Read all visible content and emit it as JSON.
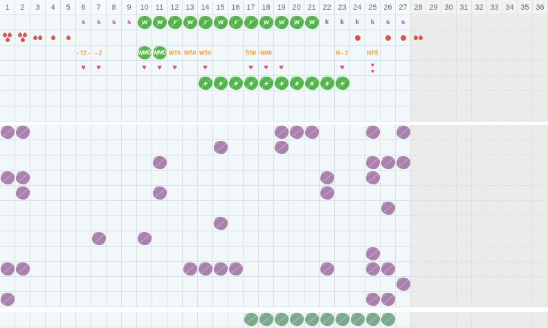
{
  "colors": {
    "bright_green": "#55b34c",
    "sea_green": "#7ca98c",
    "purple": "#a981ac",
    "red": "#d95550",
    "heart_pink": "#df4f77",
    "letter_purple": "#ad56a0",
    "orange": "#f2a12b",
    "header_text": "#5d6b75",
    "grid_line": "#cfe3ee",
    "bg_light": "#f2f7f9",
    "bg_gray": "#ebebe9",
    "bg_header": "#f6f9fa"
  },
  "grid": {
    "columns": 36,
    "gray_from_column": 28,
    "header_numbers": [
      "1",
      "2",
      "3",
      "4",
      "5",
      "6",
      "7",
      "8",
      "9",
      "10",
      "11",
      "12",
      "13",
      "14",
      "15",
      "16",
      "17",
      "18",
      "19",
      "20",
      "21",
      "22",
      "23",
      "24",
      "25",
      "26",
      "27",
      "28",
      "29",
      "30",
      "31",
      "32",
      "33",
      "34",
      "35",
      "36"
    ]
  },
  "upper_rows": [
    {
      "name": "status-row",
      "cells": [
        {
          "col": 6,
          "kind": "letter",
          "text": "s"
        },
        {
          "col": 7,
          "kind": "letter",
          "text": "s"
        },
        {
          "col": 8,
          "kind": "letter",
          "text": "s"
        },
        {
          "col": 9,
          "kind": "letter",
          "text": "s"
        },
        {
          "col": 10,
          "kind": "green_letter",
          "text": "w"
        },
        {
          "col": 11,
          "kind": "green_letter",
          "text": "w"
        },
        {
          "col": 12,
          "kind": "green_letter",
          "text": "r"
        },
        {
          "col": 13,
          "kind": "green_letter",
          "text": "w"
        },
        {
          "col": 14,
          "kind": "green_letter",
          "text": "r"
        },
        {
          "col": 15,
          "kind": "green_letter",
          "text": "w"
        },
        {
          "col": 16,
          "kind": "green_letter",
          "text": "r"
        },
        {
          "col": 17,
          "kind": "green_letter",
          "text": "r"
        },
        {
          "col": 18,
          "kind": "green_letter",
          "text": "w"
        },
        {
          "col": 19,
          "kind": "green_letter",
          "text": "w"
        },
        {
          "col": 20,
          "kind": "green_letter",
          "text": "w"
        },
        {
          "col": 21,
          "kind": "green_letter",
          "text": "w"
        },
        {
          "col": 22,
          "kind": "letter",
          "text": "k"
        },
        {
          "col": 23,
          "kind": "letter",
          "text": "k"
        },
        {
          "col": 24,
          "kind": "letter",
          "text": "k"
        },
        {
          "col": 25,
          "kind": "letter",
          "text": "k"
        },
        {
          "col": 26,
          "kind": "letter",
          "text": "s"
        },
        {
          "col": 27,
          "kind": "letter",
          "text": "s"
        }
      ]
    },
    {
      "name": "drops-row",
      "cells": [
        {
          "col": 1,
          "kind": "drops",
          "count": 3
        },
        {
          "col": 2,
          "kind": "drops",
          "count": 3
        },
        {
          "col": 3,
          "kind": "drops",
          "count": 2
        },
        {
          "col": 4,
          "kind": "drops",
          "count": 1
        },
        {
          "col": 5,
          "kind": "drops",
          "count": 1
        },
        {
          "col": 24,
          "kind": "dot"
        },
        {
          "col": 26,
          "kind": "dot"
        },
        {
          "col": 27,
          "kind": "dot"
        },
        {
          "col": 28,
          "kind": "drops",
          "count": 2
        }
      ]
    },
    {
      "name": "labels-row",
      "cells": [
        {
          "col": 6,
          "kind": "orange_label",
          "text": "- TZ -"
        },
        {
          "col": 7,
          "kind": "orange_label",
          "text": "- Z"
        },
        {
          "col": 10,
          "kind": "green_label",
          "text": "WMO"
        },
        {
          "col": 11,
          "kind": "green_label",
          "text": "WMO"
        },
        {
          "col": 12,
          "kind": "orange_label",
          "text": "WT0"
        },
        {
          "col": 13,
          "kind": "orange_label",
          "text": "WŠ0"
        },
        {
          "col": 14,
          "kind": "orange_label",
          "text": "WŠ0"
        },
        {
          "col": 17,
          "kind": "orange_label",
          "text": "ŠŠ0"
        },
        {
          "col": 18,
          "kind": "orange_label",
          "text": "NM0"
        },
        {
          "col": 23,
          "kind": "orange_label",
          "text": "N - Z"
        },
        {
          "col": 25,
          "kind": "orange_label",
          "text": "NTŠ"
        }
      ]
    },
    {
      "name": "hearts-row",
      "cells": [
        {
          "col": 6,
          "kind": "heart"
        },
        {
          "col": 7,
          "kind": "heart"
        },
        {
          "col": 10,
          "kind": "heart"
        },
        {
          "col": 11,
          "kind": "heart"
        },
        {
          "col": 12,
          "kind": "heart"
        },
        {
          "col": 14,
          "kind": "heart"
        },
        {
          "col": 17,
          "kind": "heart"
        },
        {
          "col": 18,
          "kind": "heart"
        },
        {
          "col": 19,
          "kind": "heart"
        },
        {
          "col": 23,
          "kind": "heart"
        },
        {
          "col": 25,
          "kind": "heart_double"
        }
      ]
    },
    {
      "name": "flowers-row",
      "cells": [
        {
          "col": 14,
          "kind": "flower"
        },
        {
          "col": 15,
          "kind": "flower"
        },
        {
          "col": 16,
          "kind": "flower"
        },
        {
          "col": 17,
          "kind": "flower"
        },
        {
          "col": 18,
          "kind": "flower"
        },
        {
          "col": 19,
          "kind": "flower"
        },
        {
          "col": 20,
          "kind": "flower"
        },
        {
          "col": 21,
          "kind": "flower"
        },
        {
          "col": 22,
          "kind": "flower"
        },
        {
          "col": 23,
          "kind": "flower"
        }
      ]
    },
    {
      "name": "empty-row-1",
      "cells": []
    },
    {
      "name": "empty-row-2",
      "cells": []
    }
  ],
  "main_rows": [
    {
      "name": "main-row-1",
      "purple_cols": [
        1,
        2,
        19,
        20,
        21,
        25,
        27
      ]
    },
    {
      "name": "main-row-2",
      "purple_cols": [
        15,
        19
      ]
    },
    {
      "name": "main-row-3",
      "purple_cols": [
        11,
        25,
        26,
        27
      ]
    },
    {
      "name": "main-row-4",
      "purple_cols": [
        1,
        2,
        22,
        25
      ]
    },
    {
      "name": "main-row-5",
      "purple_cols": [
        2,
        11,
        22
      ]
    },
    {
      "name": "main-row-6",
      "purple_cols": [
        26
      ]
    },
    {
      "name": "main-row-7",
      "purple_cols": [
        15
      ]
    },
    {
      "name": "main-row-8",
      "purple_cols": [
        7,
        10
      ]
    },
    {
      "name": "main-row-9",
      "purple_cols": [
        25
      ]
    },
    {
      "name": "main-row-10",
      "purple_cols": [
        1,
        2,
        13,
        14,
        15,
        16,
        22,
        25,
        26
      ]
    },
    {
      "name": "main-row-11",
      "purple_cols": [
        27
      ]
    },
    {
      "name": "main-row-12",
      "purple_cols": [
        1,
        25,
        26
      ]
    }
  ],
  "bottom_rows": [
    {
      "name": "bottom-row-1",
      "green_cols": [
        17,
        18,
        19,
        20,
        21,
        22,
        23,
        24,
        25,
        26
      ]
    },
    {
      "name": "bottom-row-2",
      "green_cols": []
    }
  ]
}
